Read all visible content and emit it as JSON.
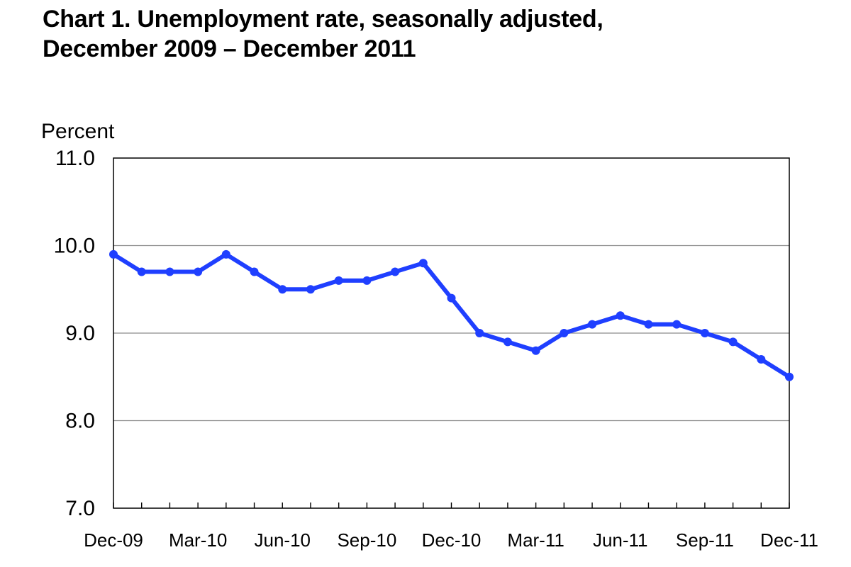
{
  "title": {
    "line1": "Chart 1. Unemployment rate, seasonally adjusted,",
    "line2": "December 2009 – December 2011"
  },
  "chart_data": {
    "type": "line",
    "title": "Chart 1. Unemployment rate, seasonally adjusted, December 2009 – December 2011",
    "xlabel": "",
    "ylabel": "Percent",
    "ylim": [
      7.0,
      11.0
    ],
    "yticks": [
      "7.0",
      "8.0",
      "9.0",
      "10.0",
      "11.0"
    ],
    "grid": true,
    "legend": "none",
    "x": [
      "Dec-09",
      "Jan-10",
      "Feb-10",
      "Mar-10",
      "Apr-10",
      "May-10",
      "Jun-10",
      "Jul-10",
      "Aug-10",
      "Sep-10",
      "Oct-10",
      "Nov-10",
      "Dec-10",
      "Jan-11",
      "Feb-11",
      "Mar-11",
      "Apr-11",
      "May-11",
      "Jun-11",
      "Jul-11",
      "Aug-11",
      "Sep-11",
      "Oct-11",
      "Nov-11",
      "Dec-11"
    ],
    "xtick_labels": [
      "Dec-09",
      "Mar-10",
      "Jun-10",
      "Sep-10",
      "Dec-10",
      "Mar-11",
      "Jun-11",
      "Sep-11",
      "Dec-11"
    ],
    "series": [
      {
        "values": [
          9.9,
          9.7,
          9.7,
          9.7,
          9.9,
          9.7,
          9.5,
          9.5,
          9.6,
          9.6,
          9.7,
          9.8,
          9.4,
          9.0,
          8.9,
          8.8,
          9.0,
          9.1,
          9.2,
          9.1,
          9.1,
          9.0,
          8.9,
          8.7,
          8.5
        ],
        "color": "#1f3fff"
      }
    ]
  }
}
